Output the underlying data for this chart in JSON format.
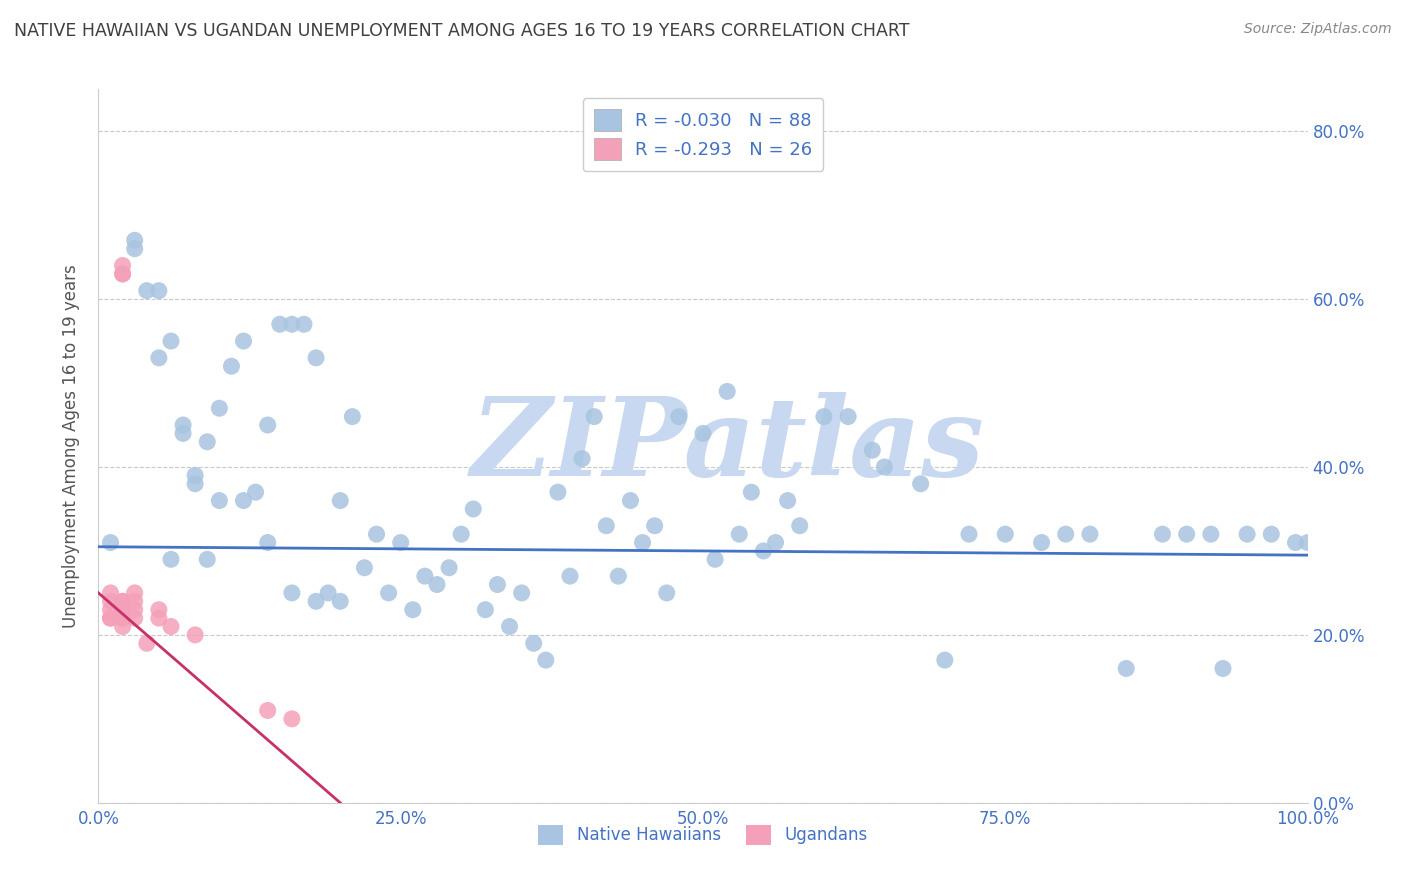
{
  "title": "NATIVE HAWAIIAN VS UGANDAN UNEMPLOYMENT AMONG AGES 16 TO 19 YEARS CORRELATION CHART",
  "source": "Source: ZipAtlas.com",
  "ylabel": "Unemployment Among Ages 16 to 19 years",
  "xlim": [
    0.0,
    1.0
  ],
  "ylim": [
    0.0,
    0.85
  ],
  "x_ticks": [
    0.0,
    0.25,
    0.5,
    0.75,
    1.0
  ],
  "x_tick_labels": [
    "0.0%",
    "25.0%",
    "50.0%",
    "75.0%",
    "100.0%"
  ],
  "y_ticks": [
    0.0,
    0.2,
    0.4,
    0.6,
    0.8
  ],
  "y_tick_labels": [
    "0.0%",
    "20.0%",
    "40.0%",
    "60.0%",
    "80.0%"
  ],
  "native_hawaiian_x": [
    0.01,
    0.03,
    0.04,
    0.05,
    0.06,
    0.07,
    0.08,
    0.09,
    0.1,
    0.11,
    0.12,
    0.13,
    0.14,
    0.15,
    0.16,
    0.17,
    0.18,
    0.19,
    0.2,
    0.21,
    0.22,
    0.23,
    0.24,
    0.25,
    0.26,
    0.27,
    0.28,
    0.29,
    0.3,
    0.31,
    0.32,
    0.33,
    0.34,
    0.35,
    0.36,
    0.37,
    0.38,
    0.39,
    0.4,
    0.41,
    0.42,
    0.43,
    0.44,
    0.45,
    0.46,
    0.47,
    0.48,
    0.5,
    0.51,
    0.52,
    0.53,
    0.54,
    0.55,
    0.56,
    0.57,
    0.58,
    0.6,
    0.62,
    0.64,
    0.65,
    0.68,
    0.7,
    0.72,
    0.75,
    0.78,
    0.8,
    0.82,
    0.85,
    0.88,
    0.9,
    0.92,
    0.93,
    0.95,
    0.97,
    0.99,
    1.0,
    0.03,
    0.05,
    0.06,
    0.07,
    0.08,
    0.09,
    0.1,
    0.12,
    0.14,
    0.16,
    0.18,
    0.2
  ],
  "native_hawaiian_y": [
    0.31,
    0.67,
    0.61,
    0.53,
    0.29,
    0.45,
    0.38,
    0.43,
    0.47,
    0.52,
    0.55,
    0.37,
    0.45,
    0.57,
    0.57,
    0.57,
    0.53,
    0.25,
    0.36,
    0.46,
    0.28,
    0.32,
    0.25,
    0.31,
    0.23,
    0.27,
    0.26,
    0.28,
    0.32,
    0.35,
    0.23,
    0.26,
    0.21,
    0.25,
    0.19,
    0.17,
    0.37,
    0.27,
    0.41,
    0.46,
    0.33,
    0.27,
    0.36,
    0.31,
    0.33,
    0.25,
    0.46,
    0.44,
    0.29,
    0.49,
    0.32,
    0.37,
    0.3,
    0.31,
    0.36,
    0.33,
    0.46,
    0.46,
    0.42,
    0.4,
    0.38,
    0.17,
    0.32,
    0.32,
    0.31,
    0.32,
    0.32,
    0.16,
    0.32,
    0.32,
    0.32,
    0.16,
    0.32,
    0.32,
    0.31,
    0.31,
    0.66,
    0.61,
    0.55,
    0.44,
    0.39,
    0.29,
    0.36,
    0.36,
    0.31,
    0.25,
    0.24,
    0.24
  ],
  "ugandan_x": [
    0.01,
    0.01,
    0.01,
    0.01,
    0.01,
    0.02,
    0.02,
    0.02,
    0.02,
    0.02,
    0.02,
    0.02,
    0.02,
    0.02,
    0.02,
    0.03,
    0.03,
    0.03,
    0.03,
    0.04,
    0.05,
    0.05,
    0.06,
    0.08,
    0.14,
    0.16
  ],
  "ugandan_y": [
    0.22,
    0.22,
    0.23,
    0.24,
    0.25,
    0.21,
    0.22,
    0.22,
    0.23,
    0.23,
    0.24,
    0.24,
    0.63,
    0.63,
    0.64,
    0.22,
    0.23,
    0.24,
    0.25,
    0.19,
    0.22,
    0.23,
    0.21,
    0.2,
    0.11,
    0.1
  ],
  "nh_R": -0.03,
  "nh_N": 88,
  "ug_R": -0.293,
  "ug_N": 26,
  "nh_color": "#a8c4e0",
  "ug_color": "#f4a0b8",
  "nh_line_color": "#4472c4",
  "ug_line_color": "#c8306a",
  "background_color": "#ffffff",
  "grid_color": "#bbbbbb",
  "tick_color": "#4472c4",
  "title_color": "#404040",
  "watermark_color": "#c8d8f0",
  "watermark_text": "ZIPatlas"
}
